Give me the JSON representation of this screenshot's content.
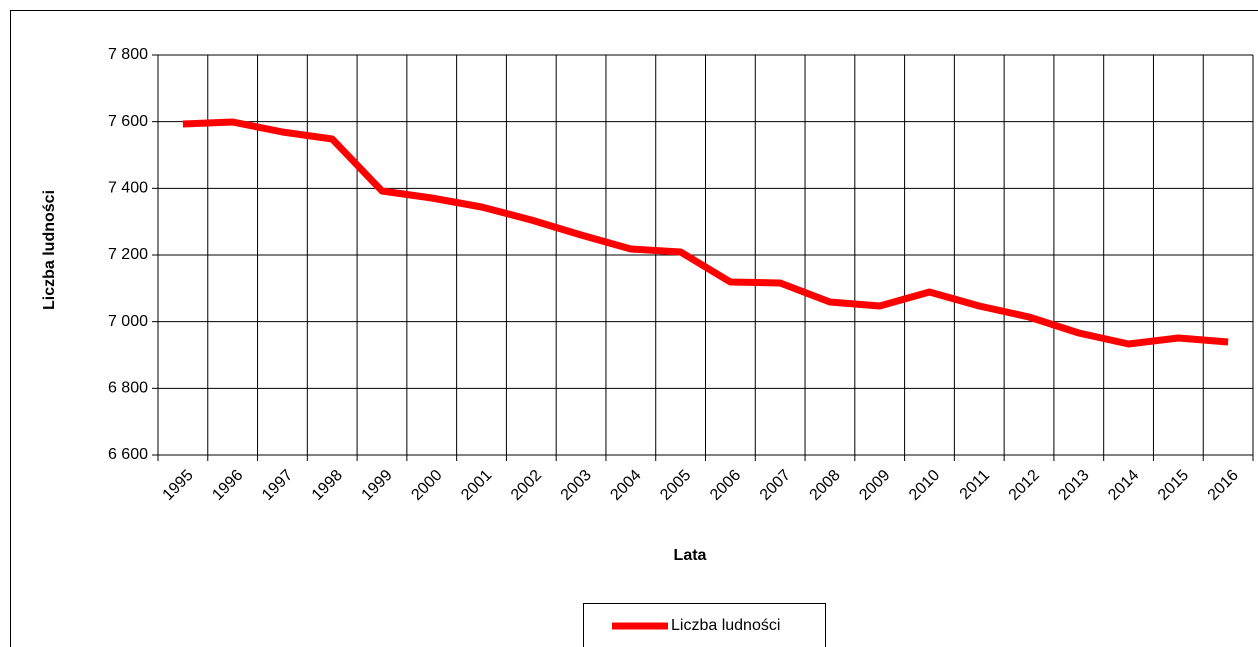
{
  "chart_data": {
    "type": "line",
    "x_label": "Lata",
    "y_label": "Liczba ludności",
    "categories": [
      "1995",
      "1996",
      "1997",
      "1998",
      "1999",
      "2000",
      "2001",
      "2002",
      "2003",
      "2004",
      "2005",
      "2006",
      "2007",
      "2008",
      "2009",
      "2010",
      "2011",
      "2012",
      "2013",
      "2014",
      "2015",
      "2016"
    ],
    "series": [
      {
        "name": "Liczba ludności",
        "color": "#ff0000",
        "values": [
          7593,
          7599,
          7569,
          7548,
          7392,
          7371,
          7344,
          7305,
          7260,
          7218,
          7209,
          7119,
          7116,
          7059,
          7047,
          7089,
          7047,
          7014,
          6966,
          6933,
          6951,
          6939
        ]
      }
    ],
    "ylim": [
      6600,
      7800
    ],
    "yticks": [
      {
        "value": 6600,
        "label": "6 600"
      },
      {
        "value": 6800,
        "label": "6 800"
      },
      {
        "value": 7000,
        "label": "7 000"
      },
      {
        "value": 7200,
        "label": "7 200"
      },
      {
        "value": 7400,
        "label": "7 400"
      },
      {
        "value": 7600,
        "label": "7 600"
      },
      {
        "value": 7800,
        "label": "7 800"
      }
    ],
    "grid": true,
    "legend": "bottom"
  }
}
